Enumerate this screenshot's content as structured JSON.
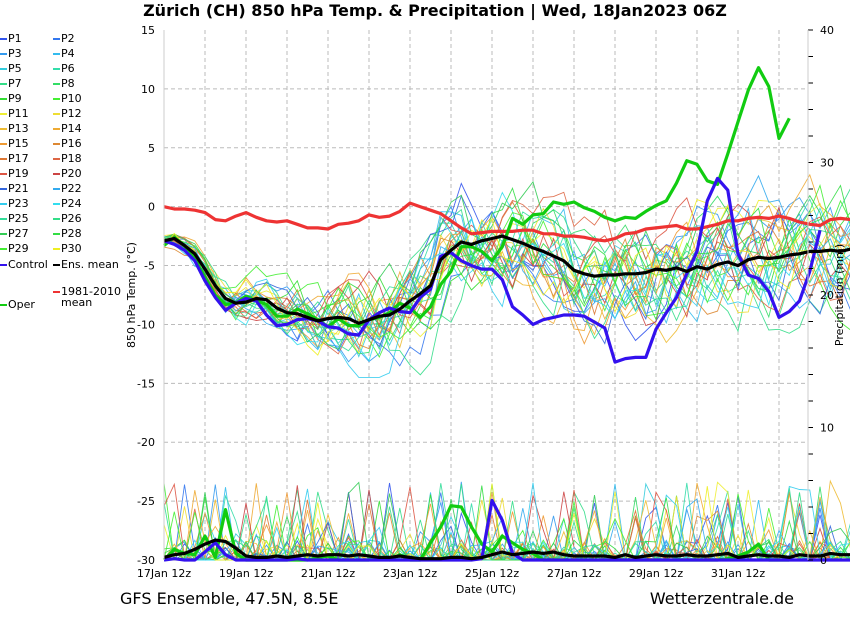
{
  "chart_data": {
    "type": "line",
    "title": "Zürich  (CH)  850 hPa Temp. & Precipitation | Wed, 18Jan2023 06Z",
    "xlabel": "Date (UTC)",
    "ylabel": "850 hPa Temp. (°C)",
    "y2label": "Precipitation (mm)",
    "ylim": [
      -30,
      15
    ],
    "y2lim": [
      0,
      40
    ],
    "yticks": [
      "15",
      "10",
      "5",
      "0",
      "-5",
      "-10",
      "-15",
      "-20",
      "-25",
      "-30"
    ],
    "y2ticks": [
      "40",
      "30",
      "20",
      "10",
      "0"
    ],
    "xticks": [
      "17Jan 12z",
      "19Jan 12z",
      "21Jan 12z",
      "23Jan 12z",
      "25Jan 12z",
      "27Jan 12z",
      "29Jan 12z",
      "31Jan 12z"
    ],
    "x_step_hours": 6,
    "grid": true,
    "legend_position": "left",
    "footer_left": "GFS Ensemble, 47.5N, 8.5E",
    "footer_right": "Wetterzentrale.de",
    "legend": [
      {
        "name": "P1",
        "color": "#3355ee"
      },
      {
        "name": "P2",
        "color": "#3377ee"
      },
      {
        "name": "P3",
        "color": "#3399ee"
      },
      {
        "name": "P4",
        "color": "#33bbee"
      },
      {
        "name": "P5",
        "color": "#33ccdd"
      },
      {
        "name": "P6",
        "color": "#33ddaa"
      },
      {
        "name": "P7",
        "color": "#33dd88"
      },
      {
        "name": "P8",
        "color": "#33dd66"
      },
      {
        "name": "P9",
        "color": "#33dd33"
      },
      {
        "name": "P10",
        "color": "#44ee33"
      },
      {
        "name": "P11",
        "color": "#eeee33"
      },
      {
        "name": "P12",
        "color": "#eedd33"
      },
      {
        "name": "P13",
        "color": "#eebb33"
      },
      {
        "name": "P14",
        "color": "#eeaa33"
      },
      {
        "name": "P15",
        "color": "#ee9933"
      },
      {
        "name": "P16",
        "color": "#dd8833"
      },
      {
        "name": "P17",
        "color": "#dd7733"
      },
      {
        "name": "P18",
        "color": "#dd6644"
      },
      {
        "name": "P19",
        "color": "#dd5544"
      },
      {
        "name": "P20",
        "color": "#cc4444"
      },
      {
        "name": "P21",
        "color": "#3366dd"
      },
      {
        "name": "P22",
        "color": "#33aaee"
      },
      {
        "name": "P23",
        "color": "#33ccee"
      },
      {
        "name": "P24",
        "color": "#33ddee"
      },
      {
        "name": "P25",
        "color": "#33dd99"
      },
      {
        "name": "P26",
        "color": "#33dd88"
      },
      {
        "name": "P27",
        "color": "#33cc55"
      },
      {
        "name": "P28",
        "color": "#33dd44"
      },
      {
        "name": "P29",
        "color": "#44ee33"
      },
      {
        "name": "P30",
        "color": "#eeee22"
      },
      {
        "name": "Control",
        "color": "#3311ee"
      },
      {
        "name": "Ens. mean",
        "color": "#000000"
      },
      {
        "name": "Oper",
        "color": "#11cc11"
      },
      {
        "name": "1981-2010 mean",
        "color": "#ee3333"
      }
    ],
    "series": [
      {
        "name": "1981-2010 mean",
        "color": "#ee3333",
        "temp": [
          0,
          -0.2,
          -0.2,
          -0.3,
          -0.5,
          -1.1,
          -1.2,
          -0.8,
          -0.5,
          -0.9,
          -1.2,
          -1.3,
          -1.2,
          -1.5,
          -1.8,
          -1.8,
          -1.9,
          -1.5,
          -1.4,
          -1.2,
          -0.7,
          -0.9,
          -0.8,
          -0.4,
          0.3,
          0,
          -0.3,
          -0.6,
          -1.2,
          -1.8,
          -2.3,
          -2.2,
          -2.1,
          -2.1,
          -2.1,
          -2,
          -2,
          -2.3,
          -2.3,
          -2.5,
          -2.5,
          -2.6,
          -2.8,
          -2.9,
          -2.7,
          -2.3,
          -2.2,
          -1.9,
          -1.8,
          -1.7,
          -1.6,
          -1.9,
          -1.9,
          -1.7,
          -1.5,
          -1.2,
          -1.2,
          -1,
          -0.9,
          -1,
          -0.8,
          -1,
          -1.3,
          -1.5,
          -1.6,
          -1.1,
          -1,
          -1.1,
          -1,
          -0.6,
          -0.3,
          0.2,
          0.4,
          0.3,
          -0.2
        ]
      },
      {
        "name": "Ens. mean",
        "color": "#000000",
        "temp": [
          -2.9,
          -2.7,
          -3.3,
          -4,
          -5.3,
          -6.7,
          -7.8,
          -8.2,
          -8.1,
          -7.8,
          -7.9,
          -8.6,
          -9,
          -9.1,
          -9.4,
          -9.7,
          -9.5,
          -9.4,
          -9.5,
          -9.9,
          -9.6,
          -9.3,
          -9.2,
          -8.7,
          -8,
          -7.4,
          -6.7,
          -4.5,
          -3.7,
          -3,
          -3.2,
          -2.9,
          -2.7,
          -2.5,
          -2.8,
          -3.1,
          -3.5,
          -3.8,
          -4.2,
          -4.6,
          -5.4,
          -5.7,
          -5.9,
          -5.8,
          -5.8,
          -5.7,
          -5.7,
          -5.6,
          -5.3,
          -5.4,
          -5.2,
          -5.5,
          -5.1,
          -5.3,
          -4.9,
          -4.7,
          -5,
          -4.5,
          -4.3,
          -4.4,
          -4.3,
          -4.1,
          -4,
          -3.8,
          -3.8,
          -3.7,
          -3.8,
          -3.6,
          -3.5,
          -3.6,
          -3.3,
          -3.2
        ],
        "precip": [
          0.2,
          0.4,
          0.5,
          0.8,
          1.2,
          1.5,
          1.4,
          0.9,
          0.3,
          0.2,
          0.2,
          0.3,
          0.2,
          0.3,
          0.4,
          0.3,
          0.4,
          0.4,
          0.3,
          0.4,
          0.3,
          0.2,
          0.2,
          0.3,
          0.2,
          0.1,
          0.1,
          0.1,
          0.2,
          0.2,
          0.1,
          0.2,
          0.4,
          0.6,
          0.4,
          0.5,
          0.6,
          0.5,
          0.6,
          0.4,
          0.3,
          0.3,
          0.3,
          0.3,
          0.2,
          0.4,
          0.2,
          0.3,
          0.4,
          0.3,
          0.3,
          0.4,
          0.3,
          0.3,
          0.4,
          0.5,
          0.2,
          0.3,
          0.4,
          0.3,
          0.3,
          0.2,
          0.4,
          0.3,
          0.3,
          0.5,
          0.4,
          0.4,
          0.3,
          0.2,
          0.6,
          0.7
        ]
      },
      {
        "name": "Control",
        "color": "#3311ee",
        "temp": [
          -2.9,
          -3.2,
          -3.7,
          -4.6,
          -6.3,
          -7.7,
          -8.8,
          -8.2,
          -7.8,
          -8,
          -9.2,
          -10.1,
          -10,
          -9.6,
          -9.5,
          -9.7,
          -10.2,
          -10.3,
          -10.8,
          -10.9,
          -9.6,
          -9,
          -8.6,
          -8.9,
          -9,
          -7.7,
          -7,
          -4.2,
          -3.9,
          -4.6,
          -5,
          -5.3,
          -5.3,
          -6.2,
          -8.5,
          -9.2,
          -10,
          -9.6,
          -9.4,
          -9.2,
          -9.2,
          -9.3,
          -9.8,
          -10.3,
          -13.2,
          -12.9,
          -12.8,
          -12.8,
          -10.4,
          -9,
          -7.7,
          -5.7,
          -3.8,
          0.5,
          2.4,
          1.4,
          -4,
          -5.8,
          -6.1,
          -7.2,
          -9.4,
          -8.9,
          -8,
          -5.5,
          -2
        ],
        "precip": [
          0,
          0.1,
          0,
          0,
          0.6,
          1.3,
          0.4,
          0,
          0,
          0,
          0,
          0,
          0,
          0.1,
          0,
          0,
          0,
          0,
          0,
          0,
          0,
          0,
          0,
          0,
          0,
          0,
          0,
          0,
          0,
          0,
          0,
          0.1,
          4.5,
          3,
          0.5,
          0,
          0,
          0,
          0,
          0,
          0,
          0,
          0,
          0,
          0,
          0,
          0,
          0,
          0,
          0,
          0,
          0,
          0,
          0,
          0,
          0,
          0,
          0,
          0,
          0,
          0,
          0,
          0,
          0,
          0,
          0,
          0,
          0,
          0,
          0,
          0,
          0
        ]
      },
      {
        "name": "Oper",
        "color": "#11cc11",
        "temp": [
          -3.3,
          -2.6,
          -3.3,
          -4.4,
          -6,
          -7.5,
          -8.3,
          -8.2,
          -7.6,
          -8,
          -8.3,
          -9.3,
          -9.3,
          -8.7,
          -9.1,
          -9.6,
          -10.2,
          -9.5,
          -10.1,
          -10.1,
          -9.6,
          -9.4,
          -9,
          -8.2,
          -8.6,
          -9.4,
          -8.5,
          -6.6,
          -5.5,
          -3.4,
          -3.4,
          -3.8,
          -4.6,
          -3.4,
          -1,
          -1.5,
          -0.7,
          -0.6,
          0.4,
          0.2,
          0.4,
          -0.1,
          -0.4,
          -0.9,
          -1.2,
          -0.9,
          -1,
          -0.4,
          0.1,
          0.5,
          2,
          3.9,
          3.6,
          2.2,
          1.9,
          4.5,
          7.2,
          9.9,
          11.8,
          10.2,
          5.8,
          7.5
        ],
        "precip": [
          0,
          0.8,
          0.5,
          0.4,
          1.8,
          0.2,
          3.8,
          0.5,
          0,
          0,
          0,
          0,
          0,
          0,
          0,
          0.2,
          0.3,
          0,
          0,
          0,
          0,
          0.2,
          0,
          0.4,
          0,
          0,
          1.3,
          2.5,
          4.1,
          4,
          2.5,
          1.2,
          0.6,
          1.8,
          1.3,
          0.8,
          0.5,
          0,
          0,
          0,
          0,
          0,
          0,
          0,
          0,
          0,
          0,
          0,
          0,
          0,
          0,
          0,
          0,
          0,
          0,
          0.1,
          0.3,
          0.6,
          1.2,
          0,
          0,
          0
        ]
      }
    ]
  }
}
